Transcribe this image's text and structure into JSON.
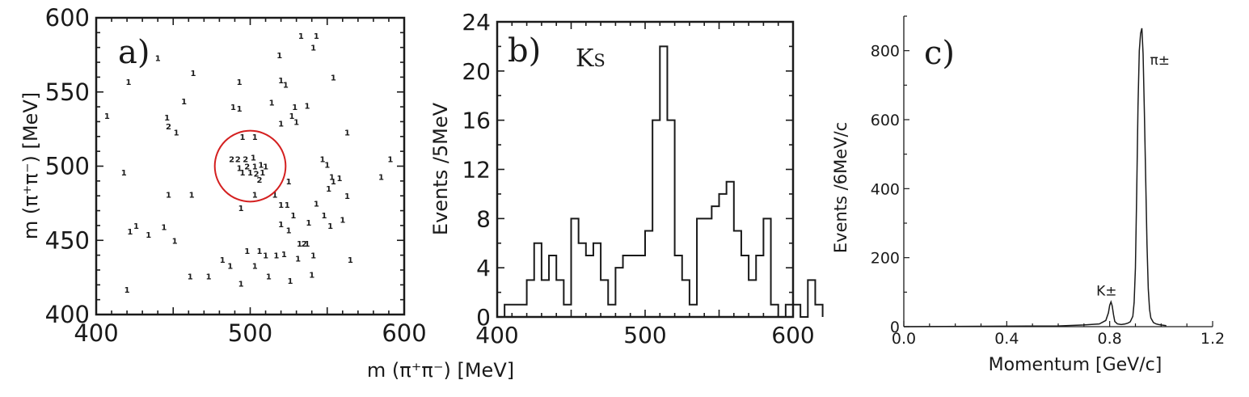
{
  "colors": {
    "ink": "#1a1a1a",
    "highlight": "#d42020",
    "background": "#ffffff"
  },
  "chart_data": [
    {
      "type": "scatter",
      "panel_label": "a)",
      "xlabel": "m (π⁺π⁻) [MeV]",
      "ylabel": "m (π⁺π⁻) [MeV]",
      "xlim": [
        400,
        600
      ],
      "ylim": [
        400,
        600
      ],
      "xticks": [
        "400",
        "500",
        "600"
      ],
      "yticks": [
        "400",
        "450",
        "500",
        "550",
        "600"
      ],
      "highlight_circle": {
        "center": [
          500,
          500
        ],
        "radius_mev": 23
      },
      "markers": [
        {
          "x": 495,
          "y": 520,
          "t": "1"
        },
        {
          "x": 503,
          "y": 520,
          "t": "1"
        },
        {
          "x": 488,
          "y": 505,
          "t": "2"
        },
        {
          "x": 492,
          "y": 505,
          "t": "2"
        },
        {
          "x": 497,
          "y": 505,
          "t": "2"
        },
        {
          "x": 502,
          "y": 506,
          "t": "1"
        },
        {
          "x": 493,
          "y": 499,
          "t": "1"
        },
        {
          "x": 498,
          "y": 500,
          "t": "2"
        },
        {
          "x": 503,
          "y": 500,
          "t": "1"
        },
        {
          "x": 507,
          "y": 501,
          "t": "1"
        },
        {
          "x": 510,
          "y": 500,
          "t": "1"
        },
        {
          "x": 495,
          "y": 496,
          "t": "1"
        },
        {
          "x": 500,
          "y": 496,
          "t": "1"
        },
        {
          "x": 504,
          "y": 495,
          "t": "2"
        },
        {
          "x": 508,
          "y": 496,
          "t": "1"
        },
        {
          "x": 506,
          "y": 491,
          "t": "2"
        },
        {
          "x": 503,
          "y": 481,
          "t": "1"
        },
        {
          "x": 494,
          "y": 472,
          "t": "1"
        },
        {
          "x": 407,
          "y": 534,
          "t": "1"
        },
        {
          "x": 418,
          "y": 496,
          "t": "1"
        },
        {
          "x": 420,
          "y": 417,
          "t": "1"
        },
        {
          "x": 421,
          "y": 557,
          "t": "1"
        },
        {
          "x": 422,
          "y": 456,
          "t": "1"
        },
        {
          "x": 426,
          "y": 460,
          "t": "1"
        },
        {
          "x": 434,
          "y": 454,
          "t": "1"
        },
        {
          "x": 440,
          "y": 573,
          "t": "1"
        },
        {
          "x": 444,
          "y": 459,
          "t": "1"
        },
        {
          "x": 446,
          "y": 533,
          "t": "1"
        },
        {
          "x": 447,
          "y": 481,
          "t": "1"
        },
        {
          "x": 447,
          "y": 527,
          "t": "2"
        },
        {
          "x": 451,
          "y": 450,
          "t": "1"
        },
        {
          "x": 452,
          "y": 523,
          "t": "1"
        },
        {
          "x": 457,
          "y": 544,
          "t": "1"
        },
        {
          "x": 461,
          "y": 426,
          "t": "1"
        },
        {
          "x": 462,
          "y": 481,
          "t": "1"
        },
        {
          "x": 463,
          "y": 563,
          "t": "1"
        },
        {
          "x": 473,
          "y": 426,
          "t": "1"
        },
        {
          "x": 482,
          "y": 437,
          "t": "1"
        },
        {
          "x": 487,
          "y": 433,
          "t": "1"
        },
        {
          "x": 489,
          "y": 540,
          "t": "1"
        },
        {
          "x": 493,
          "y": 539,
          "t": "1"
        },
        {
          "x": 493,
          "y": 557,
          "t": "1"
        },
        {
          "x": 494,
          "y": 421,
          "t": "1"
        },
        {
          "x": 498,
          "y": 443,
          "t": "1"
        },
        {
          "x": 503,
          "y": 433,
          "t": "1"
        },
        {
          "x": 506,
          "y": 443,
          "t": "1"
        },
        {
          "x": 510,
          "y": 440,
          "t": "1"
        },
        {
          "x": 512,
          "y": 426,
          "t": "1"
        },
        {
          "x": 514,
          "y": 543,
          "t": "1"
        },
        {
          "x": 516,
          "y": 481,
          "t": "1"
        },
        {
          "x": 517,
          "y": 440,
          "t": "1"
        },
        {
          "x": 519,
          "y": 575,
          "t": "1"
        },
        {
          "x": 520,
          "y": 529,
          "t": "1"
        },
        {
          "x": 520,
          "y": 558,
          "t": "1"
        },
        {
          "x": 520,
          "y": 474,
          "t": "1"
        },
        {
          "x": 520,
          "y": 461,
          "t": "1"
        },
        {
          "x": 522,
          "y": 441,
          "t": "1"
        },
        {
          "x": 523,
          "y": 555,
          "t": "1"
        },
        {
          "x": 524,
          "y": 474,
          "t": "1"
        },
        {
          "x": 525,
          "y": 490,
          "t": "1"
        },
        {
          "x": 525,
          "y": 457,
          "t": "1"
        },
        {
          "x": 526,
          "y": 423,
          "t": "1"
        },
        {
          "x": 527,
          "y": 534,
          "t": "1"
        },
        {
          "x": 528,
          "y": 467,
          "t": "1"
        },
        {
          "x": 529,
          "y": 540,
          "t": "1"
        },
        {
          "x": 530,
          "y": 530,
          "t": "1"
        },
        {
          "x": 531,
          "y": 438,
          "t": "1"
        },
        {
          "x": 532,
          "y": 448,
          "t": "1"
        },
        {
          "x": 533,
          "y": 588,
          "t": "1"
        },
        {
          "x": 535,
          "y": 448,
          "t": "2"
        },
        {
          "x": 537,
          "y": 448,
          "t": "1"
        },
        {
          "x": 537,
          "y": 541,
          "t": "1"
        },
        {
          "x": 538,
          "y": 462,
          "t": "1"
        },
        {
          "x": 540,
          "y": 427,
          "t": "1"
        },
        {
          "x": 541,
          "y": 580,
          "t": "1"
        },
        {
          "x": 541,
          "y": 440,
          "t": "1"
        },
        {
          "x": 543,
          "y": 475,
          "t": "1"
        },
        {
          "x": 543,
          "y": 588,
          "t": "1"
        },
        {
          "x": 547,
          "y": 505,
          "t": "1"
        },
        {
          "x": 548,
          "y": 467,
          "t": "1"
        },
        {
          "x": 550,
          "y": 501,
          "t": "1"
        },
        {
          "x": 551,
          "y": 485,
          "t": "1"
        },
        {
          "x": 552,
          "y": 460,
          "t": "1"
        },
        {
          "x": 553,
          "y": 493,
          "t": "1"
        },
        {
          "x": 554,
          "y": 490,
          "t": "1"
        },
        {
          "x": 554,
          "y": 560,
          "t": "1"
        },
        {
          "x": 558,
          "y": 492,
          "t": "1"
        },
        {
          "x": 560,
          "y": 464,
          "t": "1"
        },
        {
          "x": 563,
          "y": 523,
          "t": "1"
        },
        {
          "x": 563,
          "y": 480,
          "t": "1"
        },
        {
          "x": 565,
          "y": 437,
          "t": "1"
        },
        {
          "x": 585,
          "y": 493,
          "t": "1"
        },
        {
          "x": 591,
          "y": 505,
          "t": "1"
        }
      ]
    },
    {
      "type": "bar",
      "style": "step-histogram",
      "panel_label": "b)",
      "annotation": "Ks",
      "xlabel": "",
      "ylabel": "Events /5MeV",
      "xlim": [
        400,
        600
      ],
      "ylim": [
        0,
        24
      ],
      "xticks": [
        "400",
        "500",
        "600"
      ],
      "yticks": [
        "0",
        "4",
        "8",
        "12",
        "16",
        "20",
        "24"
      ],
      "bin_width": 5,
      "bin_start": 405,
      "values": [
        1,
        1,
        1,
        3,
        6,
        3,
        5,
        3,
        1,
        8,
        6,
        5,
        6,
        3,
        1,
        4,
        5,
        5,
        5,
        7,
        16,
        22,
        16,
        5,
        3,
        1,
        8,
        8,
        9,
        10,
        11,
        7,
        5,
        3,
        5,
        8,
        1,
        0,
        1,
        1,
        0,
        3,
        1
      ]
    },
    {
      "type": "line",
      "panel_label": "c)",
      "xlabel": "Momentum  [GeV/c]",
      "ylabel": "Events /6MeV/c",
      "xlim": [
        0.0,
        1.2
      ],
      "ylim": [
        0,
        900
      ],
      "xticks": [
        "0.0",
        "0.4",
        "0.8",
        "1.2"
      ],
      "yticks": [
        "0",
        "200",
        "400",
        "600",
        "800"
      ],
      "peaks": [
        {
          "label": "K±",
          "x": 0.81,
          "y": 72
        },
        {
          "label": "π±",
          "x": 0.925,
          "y": 865
        }
      ],
      "x": [
        0.0,
        0.6,
        0.7,
        0.76,
        0.785,
        0.795,
        0.8,
        0.805,
        0.81,
        0.815,
        0.82,
        0.83,
        0.845,
        0.86,
        0.87,
        0.88,
        0.89,
        0.895,
        0.9,
        0.905,
        0.91,
        0.915,
        0.92,
        0.925,
        0.93,
        0.935,
        0.94,
        0.945,
        0.95,
        0.955,
        0.96,
        0.97,
        0.98,
        0.99,
        1.0,
        1.02
      ],
      "y": [
        0,
        2,
        5,
        8,
        18,
        40,
        62,
        72,
        60,
        35,
        15,
        8,
        6,
        8,
        10,
        14,
        30,
        70,
        170,
        390,
        640,
        800,
        850,
        865,
        790,
        620,
        430,
        240,
        110,
        50,
        25,
        12,
        8,
        6,
        5,
        3
      ]
    }
  ]
}
